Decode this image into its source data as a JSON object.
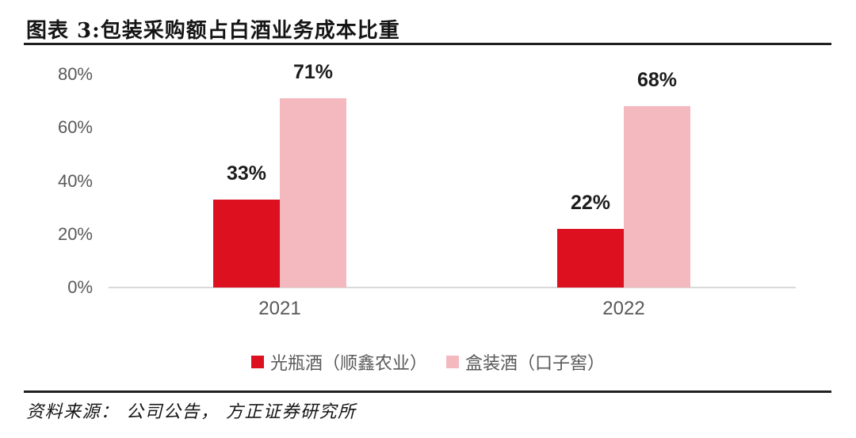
{
  "header": {
    "title": "图表 3:包装采购额占白酒业务成本比重"
  },
  "chart_data": {
    "type": "bar",
    "title": "包装采购额占白酒业务成本比重",
    "categories": [
      "2021",
      "2022"
    ],
    "series": [
      {
        "name": "光瓶酒（顺鑫农业）",
        "color": "#dc101f",
        "values": [
          33,
          22
        ]
      },
      {
        "name": "盒装酒（口子窖）",
        "color": "#f4b9be",
        "values": [
          71,
          68
        ]
      }
    ],
    "value_suffix": "%",
    "xlabel": "",
    "ylabel": "",
    "ylim": [
      0,
      80
    ],
    "yticks": [
      0,
      20,
      40,
      60,
      80
    ],
    "ytick_labels": [
      "0%",
      "20%",
      "40%",
      "60%",
      "80%"
    ],
    "grid": false,
    "legend_position": "bottom",
    "colors": {
      "axis_line": "#d9d9d9",
      "tick_text": "#595959",
      "data_label_text": "#1c1c1c"
    }
  },
  "footer": {
    "source": "资料来源： 公司公告， 方正证券研究所"
  }
}
